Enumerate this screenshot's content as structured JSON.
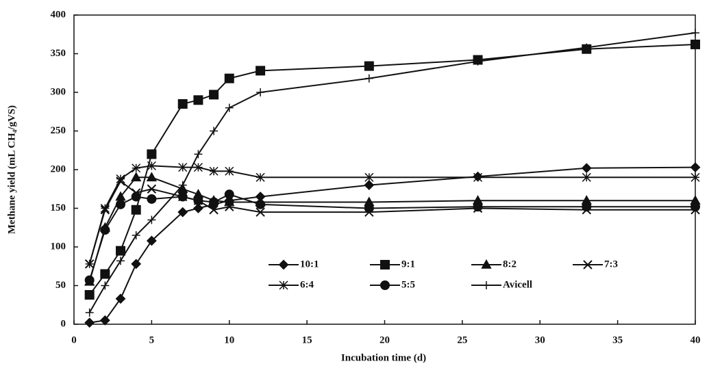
{
  "chart_data": {
    "type": "line",
    "x_label": "Incubation time (d)",
    "y_label": "Methane yield (mL CH₄/gVS)",
    "x": [
      1,
      2,
      3,
      4,
      5,
      7,
      8,
      9,
      10,
      12,
      19,
      26,
      33,
      40
    ],
    "xlim": [
      0,
      40
    ],
    "xticks": [
      0,
      5,
      10,
      15,
      20,
      25,
      30,
      35,
      40
    ],
    "ylim": [
      0,
      400
    ],
    "yticks": [
      0,
      50,
      100,
      150,
      200,
      250,
      300,
      350,
      400
    ],
    "grid": false,
    "series": [
      {
        "name": "10:1",
        "color": "#111111",
        "marker": "diamond",
        "values": [
          2,
          5,
          33,
          78,
          108,
          145,
          150,
          155,
          160,
          165,
          180,
          191,
          202,
          203
        ]
      },
      {
        "name": "9:1",
        "color": "#111111",
        "marker": "square",
        "values": [
          38,
          65,
          95,
          148,
          220,
          285,
          290,
          297,
          318,
          328,
          334,
          342,
          356,
          362
        ]
      },
      {
        "name": "8:2",
        "color": "#111111",
        "marker": "triangle",
        "values": [
          55,
          125,
          165,
          190,
          190,
          175,
          168,
          160,
          158,
          158,
          158,
          160,
          160,
          160
        ]
      },
      {
        "name": "7:3",
        "color": "#111111",
        "marker": "x",
        "values": [
          78,
          148,
          185,
          170,
          175,
          165,
          160,
          148,
          152,
          145,
          145,
          150,
          148,
          148
        ]
      },
      {
        "name": "6:4",
        "color": "#111111",
        "marker": "star",
        "values": [
          78,
          150,
          188,
          202,
          205,
          203,
          203,
          198,
          198,
          190,
          190,
          190,
          190,
          190
        ]
      },
      {
        "name": "5:5",
        "color": "#111111",
        "marker": "circle",
        "values": [
          57,
          122,
          155,
          165,
          162,
          165,
          160,
          158,
          168,
          155,
          150,
          152,
          152,
          152
        ]
      },
      {
        "name": "Avicell",
        "color": "#111111",
        "marker": "plus",
        "values": [
          15,
          50,
          82,
          115,
          135,
          180,
          220,
          250,
          280,
          300,
          318,
          340,
          358,
          377
        ]
      }
    ]
  }
}
